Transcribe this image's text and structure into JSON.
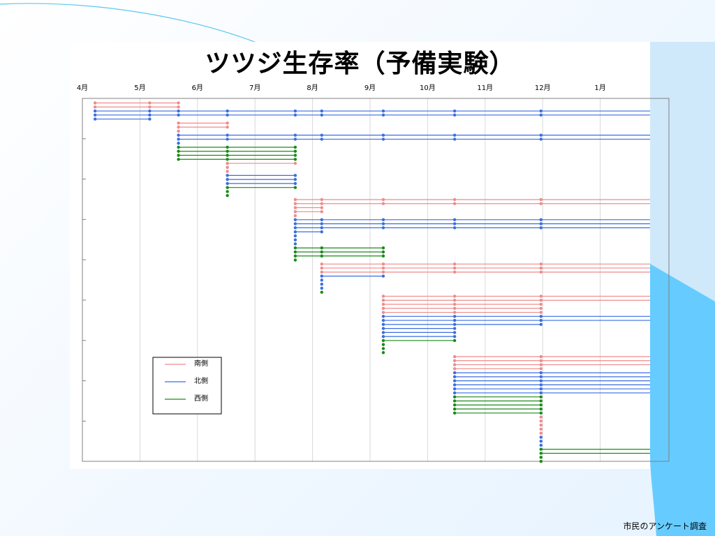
{
  "slide": {
    "title": "ツツジ生存率（予備実験）",
    "footer": "市民のアンケート調査"
  },
  "chart_data": {
    "type": "line",
    "title": "ツツジ生存率（予備実験）",
    "xlabel": "",
    "ylabel": "",
    "categories": [
      "4月",
      "5月",
      "6月",
      "7月",
      "8月",
      "9月",
      "10月",
      "11月",
      "12月",
      "1月"
    ],
    "x_unit": "month_index (0 = 4月 start)",
    "xlim": [
      0,
      9.78
    ],
    "ylim_rows": [
      0,
      84
    ],
    "grid": {
      "vertical": true,
      "horizontal": false
    },
    "legend": {
      "placement": "bottom-left",
      "entries": [
        {
          "name": "南側",
          "color": "#f08a8a"
        },
        {
          "name": "北側",
          "color": "#3a6ee0"
        },
        {
          "name": "西側",
          "color": "#1a8a1a"
        }
      ]
    },
    "observation_dates": [
      0.22,
      1.17,
      1.67,
      2.52,
      3.7,
      4.16,
      5.23,
      6.47,
      7.97
    ],
    "groups": [
      {
        "start": 0,
        "rows": [
          {
            "s": "S",
            "d": 2
          },
          {
            "s": "S",
            "d": 2
          },
          {
            "s": "N",
            "d": 9
          },
          {
            "s": "N",
            "d": 9
          },
          {
            "s": "N",
            "d": 1
          }
        ]
      },
      {
        "start": 2,
        "rows": [
          {
            "s": "S",
            "d": 3
          },
          {
            "s": "S",
            "d": 3
          },
          {
            "s": "S",
            "d": 2
          },
          {
            "s": "N",
            "d": 9
          },
          {
            "s": "N",
            "d": 9
          },
          {
            "s": "N",
            "d": 2
          },
          {
            "s": "W",
            "d": 4
          },
          {
            "s": "W",
            "d": 4
          },
          {
            "s": "W",
            "d": 4
          },
          {
            "s": "W",
            "d": 4
          }
        ]
      },
      {
        "start": 3,
        "rows": [
          {
            "s": "S",
            "d": 4
          },
          {
            "s": "S",
            "d": 3
          },
          {
            "s": "S",
            "d": 3
          },
          {
            "s": "N",
            "d": 4
          },
          {
            "s": "N",
            "d": 4
          },
          {
            "s": "N",
            "d": 4
          },
          {
            "s": "W",
            "d": 4
          },
          {
            "s": "W",
            "d": 3
          },
          {
            "s": "W",
            "d": 3
          }
        ]
      },
      {
        "start": 4,
        "rows": [
          {
            "s": "S",
            "d": 9
          },
          {
            "s": "S",
            "d": 9
          },
          {
            "s": "S",
            "d": 5
          },
          {
            "s": "S",
            "d": 5
          },
          {
            "s": "S",
            "d": 4
          },
          {
            "s": "N",
            "d": 9
          },
          {
            "s": "N",
            "d": 9
          },
          {
            "s": "N",
            "d": 9
          },
          {
            "s": "N",
            "d": 5
          },
          {
            "s": "N",
            "d": 4
          },
          {
            "s": "N",
            "d": 4
          },
          {
            "s": "N",
            "d": 4
          },
          {
            "s": "W",
            "d": 6
          },
          {
            "s": "W",
            "d": 6
          },
          {
            "s": "W",
            "d": 6
          },
          {
            "s": "W",
            "d": 4
          }
        ]
      },
      {
        "start": 5,
        "rows": [
          {
            "s": "S",
            "d": 9
          },
          {
            "s": "S",
            "d": 9
          },
          {
            "s": "S",
            "d": 9
          },
          {
            "s": "N",
            "d": 6
          },
          {
            "s": "N",
            "d": 5
          },
          {
            "s": "N",
            "d": 5
          },
          {
            "s": "N",
            "d": 5
          },
          {
            "s": "W",
            "d": 5
          }
        ]
      },
      {
        "start": 6,
        "rows": [
          {
            "s": "S",
            "d": 9
          },
          {
            "s": "S",
            "d": 9
          },
          {
            "s": "S",
            "d": 8
          },
          {
            "s": "S",
            "d": 8
          },
          {
            "s": "S",
            "d": 8
          },
          {
            "s": "N",
            "d": 9
          },
          {
            "s": "N",
            "d": 9
          },
          {
            "s": "N",
            "d": 8
          },
          {
            "s": "N",
            "d": 7
          },
          {
            "s": "N",
            "d": 7
          },
          {
            "s": "N",
            "d": 7
          },
          {
            "s": "W",
            "d": 7
          },
          {
            "s": "W",
            "d": 6
          },
          {
            "s": "W",
            "d": 6
          },
          {
            "s": "W",
            "d": 6
          }
        ]
      },
      {
        "start": 7,
        "rows": [
          {
            "s": "S",
            "d": 9
          },
          {
            "s": "S",
            "d": 9
          },
          {
            "s": "S",
            "d": 9
          },
          {
            "s": "S",
            "d": 8
          },
          {
            "s": "N",
            "d": 9
          },
          {
            "s": "N",
            "d": 9
          },
          {
            "s": "N",
            "d": 9
          },
          {
            "s": "N",
            "d": 9
          },
          {
            "s": "N",
            "d": 9
          },
          {
            "s": "N",
            "d": 9
          },
          {
            "s": "W",
            "d": 8
          },
          {
            "s": "W",
            "d": 8
          },
          {
            "s": "W",
            "d": 8
          },
          {
            "s": "W",
            "d": 8
          },
          {
            "s": "W",
            "d": 8
          }
        ]
      },
      {
        "start": 8,
        "rows": [
          {
            "s": "S",
            "d": 8
          },
          {
            "s": "S",
            "d": 8
          },
          {
            "s": "S",
            "d": 8
          },
          {
            "s": "S",
            "d": 8
          },
          {
            "s": "S",
            "d": 8
          },
          {
            "s": "N",
            "d": 8
          },
          {
            "s": "N",
            "d": 8
          },
          {
            "s": "N",
            "d": 8
          },
          {
            "s": "W",
            "d": 9
          },
          {
            "s": "W",
            "d": 9
          },
          {
            "s": "W",
            "d": 8
          },
          {
            "s": "W",
            "d": 8
          }
        ]
      }
    ]
  }
}
